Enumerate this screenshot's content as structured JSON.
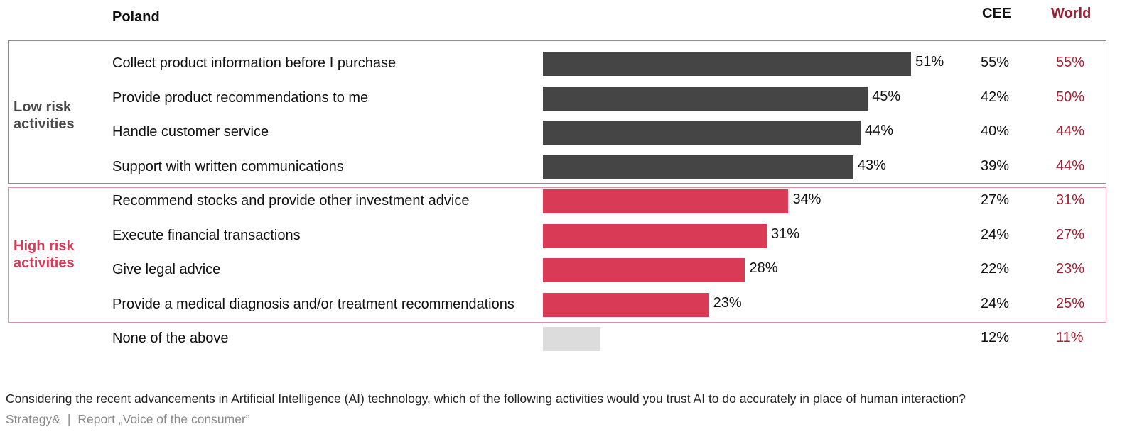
{
  "header": {
    "poland": "Poland",
    "cee": "CEE",
    "world": "World"
  },
  "groups": {
    "low": "Low risk activities",
    "high": "High risk activities"
  },
  "colors": {
    "low": "#454545",
    "high": "#d93a55",
    "none": "#dcdcdc",
    "world_text": "#a31f34"
  },
  "question": "Considering the recent advancements in Artificial Intelligence (AI) technology, which of the following activities would you trust AI to do accurately in place of human interaction?",
  "source": {
    "brand": "Strategy&",
    "separator": "|",
    "report": "Report „Voice of the consumer”"
  },
  "chart_data": {
    "type": "bar",
    "orientation": "horizontal",
    "title": "Poland",
    "categories": [
      "Collect product information before I purchase",
      "Provide product recommendations to me",
      "Handle customer service",
      "Support with written communications",
      "Recommend stocks and provide other investment advice",
      "Execute financial transactions",
      "Give legal advice",
      "Provide a medical diagnosis and/or treatment recommendations",
      "None of the above"
    ],
    "category_groups": [
      "low",
      "low",
      "low",
      "low",
      "high",
      "high",
      "high",
      "high",
      "none"
    ],
    "series": [
      {
        "name": "Poland",
        "values": [
          51,
          45,
          44,
          43,
          34,
          31,
          28,
          23,
          8
        ],
        "labels": [
          "51%",
          "45%",
          "44%",
          "43%",
          "34%",
          "31%",
          "28%",
          "23%",
          ""
        ]
      },
      {
        "name": "CEE",
        "values": [
          55,
          42,
          40,
          39,
          27,
          24,
          22,
          24,
          12
        ],
        "labels": [
          "55%",
          "42%",
          "40%",
          "39%",
          "27%",
          "24%",
          "22%",
          "24%",
          "12%"
        ]
      },
      {
        "name": "World",
        "values": [
          55,
          50,
          44,
          44,
          31,
          27,
          23,
          25,
          11
        ],
        "labels": [
          "55%",
          "50%",
          "44%",
          "44%",
          "31%",
          "27%",
          "23%",
          "25%",
          "11%"
        ]
      }
    ]
  }
}
